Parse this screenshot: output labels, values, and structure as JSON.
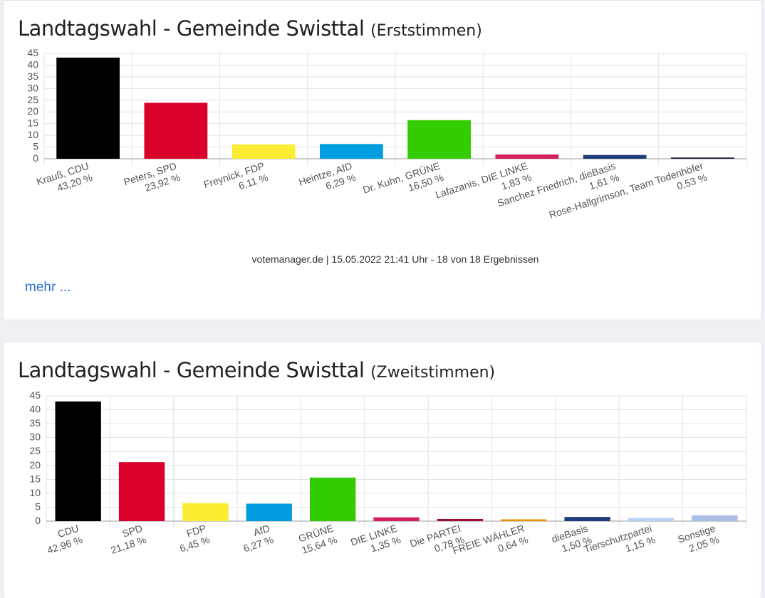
{
  "cards": [
    {
      "title": "Landtagswahl - Gemeinde Swisttal",
      "subtitle": "(Erststimmen)",
      "footer": "votemanager.de | 15.05.2022 21:41 Uhr - 18 von 18 Ergebnissen",
      "more_link": "mehr ..."
    },
    {
      "title": "Landtagswahl - Gemeinde Swisttal",
      "subtitle": "(Zweitstimmen)"
    }
  ],
  "chart_data": [
    {
      "type": "bar",
      "title": "Landtagswahl - Gemeinde Swisttal (Erststimmen)",
      "ylim": [
        0,
        45
      ],
      "yticks": [
        "0",
        "5",
        "10",
        "15",
        "20",
        "25",
        "30",
        "35",
        "40",
        "45"
      ],
      "grid": true,
      "categories": [
        "Krauß, CDU",
        "Peters, SPD",
        "Freynick, FDP",
        "Heintze, AfD",
        "Dr. Kuhn, GRÜNE",
        "Lafazanis, DIE LINKE",
        "Sanchez Friedrich, dieBasis",
        "Rose-Hallgrimson, Team Todenhöfer"
      ],
      "value_labels": [
        "43,20 %",
        "23,92 %",
        "6,11 %",
        "6,29 %",
        "16,50 %",
        "1,83 %",
        "1,61 %",
        "0,53 %"
      ],
      "values": [
        43.2,
        23.92,
        6.11,
        6.29,
        16.5,
        1.83,
        1.61,
        0.53
      ],
      "colors": [
        "#000000",
        "#d9002c",
        "#fced33",
        "#009ee0",
        "#33cc00",
        "#d21e5a",
        "#1f3d7a",
        "#1a1a2a"
      ]
    },
    {
      "type": "bar",
      "title": "Landtagswahl - Gemeinde Swisttal (Zweitstimmen)",
      "ylim": [
        0,
        45
      ],
      "yticks": [
        "0",
        "5",
        "10",
        "15",
        "20",
        "25",
        "30",
        "35",
        "40",
        "45"
      ],
      "grid": true,
      "categories": [
        "CDU",
        "SPD",
        "FDP",
        "AfD",
        "GRÜNE",
        "DIE LINKE",
        "Die PARTEI",
        "FREIE WÄHLER",
        "dieBasis",
        "Tierschutzpartei",
        "Sonstige"
      ],
      "value_labels": [
        "42,96 %",
        "21,18 %",
        "6,45 %",
        "6,27 %",
        "15,64 %",
        "1,35 %",
        "0,78 %",
        "0,64 %",
        "1,50 %",
        "1,15 %",
        "2,05 %"
      ],
      "values": [
        42.96,
        21.18,
        6.45,
        6.27,
        15.64,
        1.35,
        0.78,
        0.64,
        1.5,
        1.15,
        2.05
      ],
      "colors": [
        "#000000",
        "#d9002c",
        "#fced33",
        "#009ee0",
        "#33cc00",
        "#d21e5a",
        "#9b0f2e",
        "#f39200",
        "#1f3d7a",
        "#b7d2fb",
        "#a9bde6"
      ]
    }
  ]
}
